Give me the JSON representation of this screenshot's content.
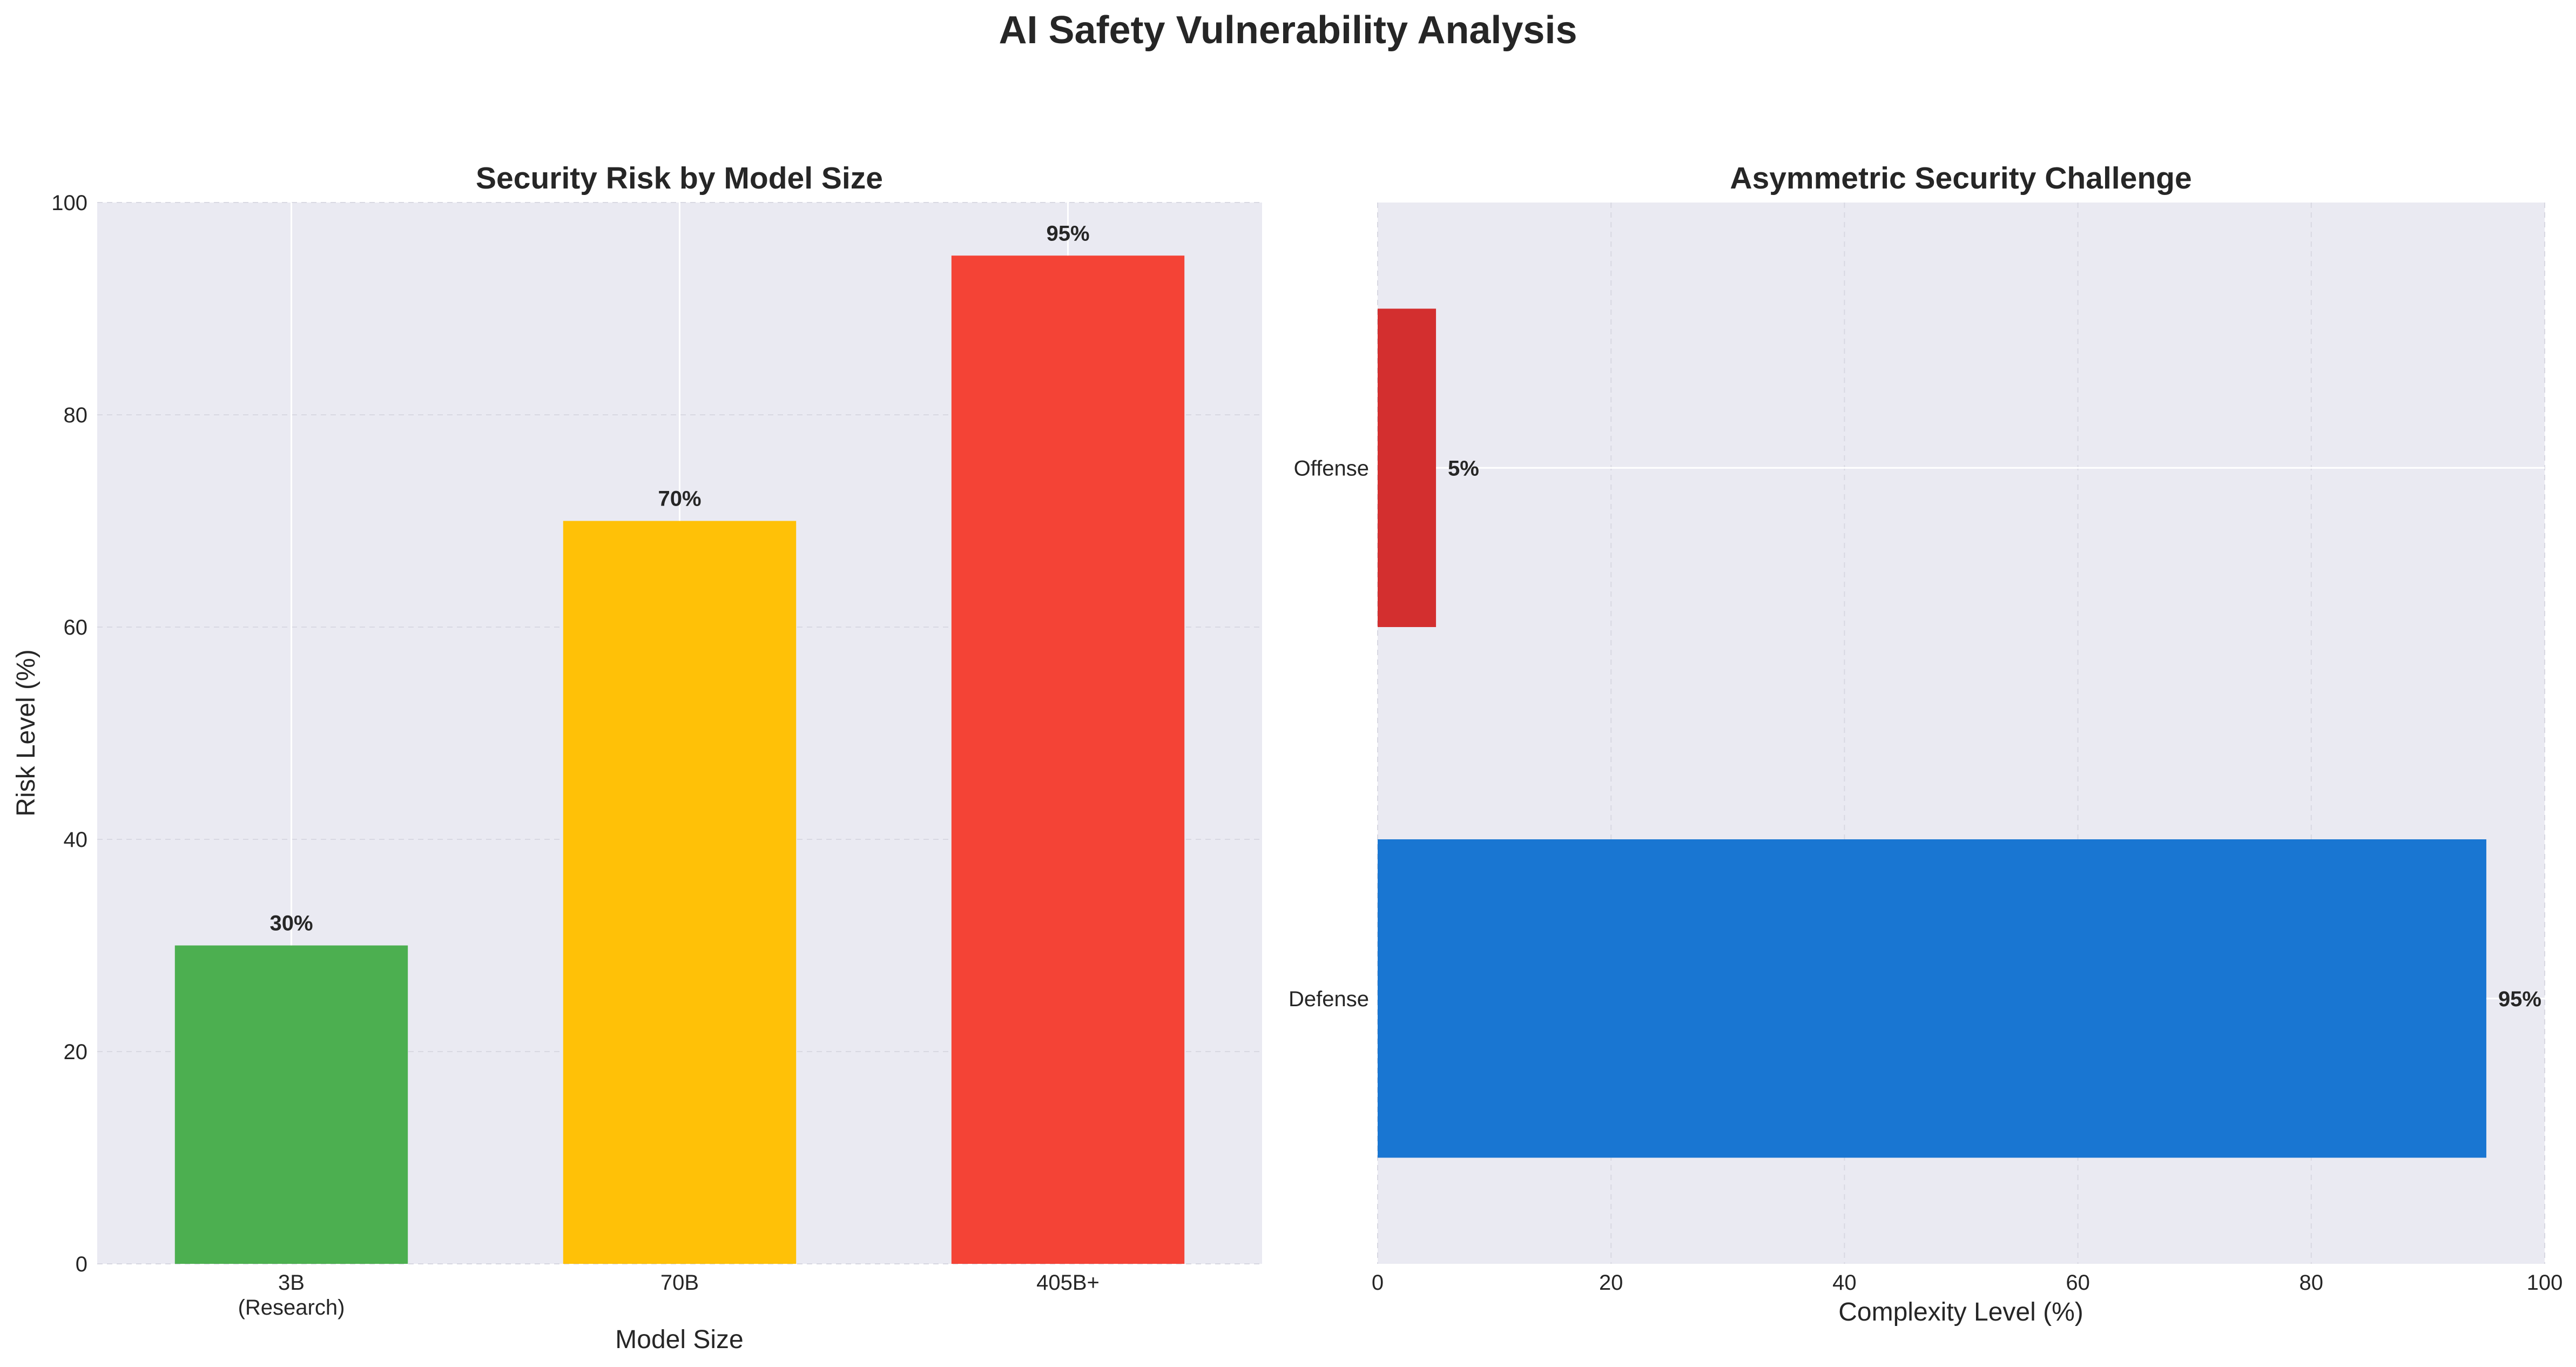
{
  "figure": {
    "title": "AI Safety Vulnerability Analysis"
  },
  "chart_data": [
    {
      "type": "bar",
      "orientation": "vertical",
      "title": "Security Risk by Model Size",
      "xlabel": "Model Size",
      "ylabel": "Risk Level (%)",
      "categories": [
        "3B\n(Research)",
        "70B",
        "405B+"
      ],
      "values": [
        30,
        70,
        95
      ],
      "data_labels": [
        "30%",
        "70%",
        "95%"
      ],
      "colors": [
        "#4caf50",
        "#ffc107",
        "#f44336"
      ],
      "ylim": [
        0,
        100
      ],
      "yticks": [
        0,
        20,
        40,
        60,
        80,
        100
      ],
      "grid": true,
      "background": "#eaeaf2"
    },
    {
      "type": "bar",
      "orientation": "horizontal",
      "title": "Asymmetric Security Challenge",
      "xlabel": "Complexity Level (%)",
      "ylabel": "",
      "categories": [
        "Defense",
        "Offense"
      ],
      "values": [
        95,
        5
      ],
      "data_labels": [
        "95%",
        "5%"
      ],
      "colors": [
        "#1976d2",
        "#d32f2f"
      ],
      "xlim": [
        0,
        100
      ],
      "xticks": [
        0,
        20,
        40,
        60,
        80,
        100
      ],
      "grid": true,
      "background": "#eaeaf2"
    }
  ]
}
